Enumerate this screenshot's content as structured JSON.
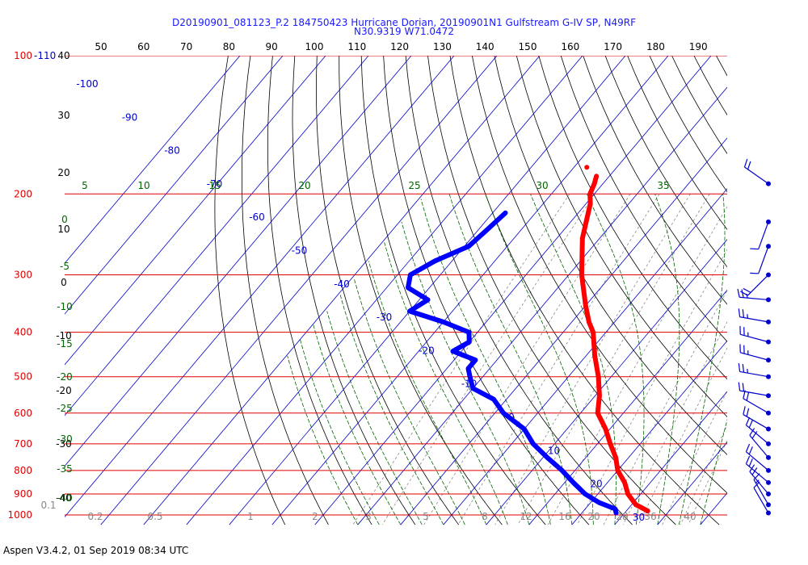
{
  "title_line1": "D20190901_081123_P.2 184750423 Hurricane Dorian, 20190901N1 Gulfstream G-IV SP, N49RF",
  "title_line2": "N30.9319 W71.0472",
  "footer": "Aspen V3.4.2, 01 Sep 2019  08:34 UTC",
  "colors": {
    "isobar": "#e00000",
    "isotherm": "#0000cc",
    "dry_adiabat": "#000000",
    "moist_adiabat": "#006600",
    "mixing_ratio": "#888888",
    "temperature": "#ff0000",
    "dewpoint": "#0000ff",
    "wind_barb": "#0000cc"
  },
  "chart_data": {
    "type": "skew-t",
    "pressure_levels_hpa": [
      100,
      200,
      300,
      400,
      500,
      600,
      700,
      800,
      900,
      1000
    ],
    "pressure_label_extra": "-110",
    "top_axis_ticks": [
      50,
      60,
      70,
      80,
      90,
      100,
      110,
      120,
      130,
      140,
      150,
      160,
      170,
      180,
      190
    ],
    "isotherm_labels": [
      -100,
      -90,
      -80,
      -70,
      -60,
      -50,
      -40,
      -30,
      -20,
      -10,
      0,
      10,
      20,
      30
    ],
    "dry_adiabat_left_labels": [
      40,
      30,
      20,
      10,
      0,
      -10,
      -20,
      -30,
      -40
    ],
    "moist_adiabat_left_labels": [
      0,
      -5,
      -10,
      -15,
      -20,
      -25,
      -30,
      -35,
      -40
    ],
    "moist_adiabat_top_labels": [
      5,
      10,
      15,
      20,
      25,
      30,
      35
    ],
    "mixing_ratio_labels": [
      "0.1",
      "0.2",
      "0.5",
      "1",
      "2",
      "3",
      "5",
      "8",
      "12",
      "16",
      "20",
      "28",
      "36",
      "40"
    ],
    "temperature_profile": {
      "pressure": [
        183,
        190,
        200,
        210,
        250,
        300,
        350,
        380,
        400,
        450,
        500,
        550,
        600,
        650,
        700,
        750,
        800,
        850,
        900,
        950,
        980
      ],
      "value": [
        -53,
        -52,
        -51,
        -49,
        -44,
        -37,
        -30,
        -26,
        -23,
        -18,
        -13,
        -9,
        -6,
        -1,
        3,
        7,
        10,
        14,
        17,
        21,
        25
      ]
    },
    "temperature_outlier": {
      "pressure": 175,
      "value": -57
    },
    "dewpoint_profile": {
      "pressure": [
        220,
        240,
        260,
        280,
        300,
        320,
        340,
        360,
        380,
        400,
        420,
        440,
        460,
        480,
        500,
        530,
        560,
        600,
        650,
        700,
        750,
        800,
        850,
        900,
        940,
        970,
        990
      ],
      "value": [
        -67,
        -68,
        -69,
        -74,
        -77,
        -75,
        -68,
        -70,
        -60,
        -52,
        -50,
        -52,
        -45,
        -45,
        -43,
        -40,
        -33,
        -28,
        -20,
        -15,
        -9,
        -3,
        2,
        7,
        12,
        17,
        18
      ]
    },
    "wind_barbs": [
      {
        "pressure": 190,
        "direction": 305,
        "speed_kt": 20
      },
      {
        "pressure": 230,
        "direction": 200,
        "speed_kt": 10
      },
      {
        "pressure": 260,
        "direction": 200,
        "speed_kt": 10
      },
      {
        "pressure": 300,
        "direction": 225,
        "speed_kt": 20
      },
      {
        "pressure": 340,
        "direction": 275,
        "speed_kt": 25
      },
      {
        "pressure": 380,
        "direction": 280,
        "speed_kt": 25
      },
      {
        "pressure": 420,
        "direction": 285,
        "speed_kt": 25
      },
      {
        "pressure": 460,
        "direction": 285,
        "speed_kt": 25
      },
      {
        "pressure": 500,
        "direction": 280,
        "speed_kt": 25
      },
      {
        "pressure": 550,
        "direction": 280,
        "speed_kt": 20
      },
      {
        "pressure": 600,
        "direction": 300,
        "speed_kt": 20
      },
      {
        "pressure": 650,
        "direction": 300,
        "speed_kt": 20
      },
      {
        "pressure": 700,
        "direction": 310,
        "speed_kt": 20
      },
      {
        "pressure": 750,
        "direction": 320,
        "speed_kt": 20
      },
      {
        "pressure": 800,
        "direction": 310,
        "speed_kt": 20
      },
      {
        "pressure": 850,
        "direction": 310,
        "speed_kt": 20
      },
      {
        "pressure": 900,
        "direction": 320,
        "speed_kt": 20
      },
      {
        "pressure": 950,
        "direction": 330,
        "speed_kt": 15
      },
      {
        "pressure": 990,
        "direction": 330,
        "speed_kt": 10
      }
    ]
  }
}
